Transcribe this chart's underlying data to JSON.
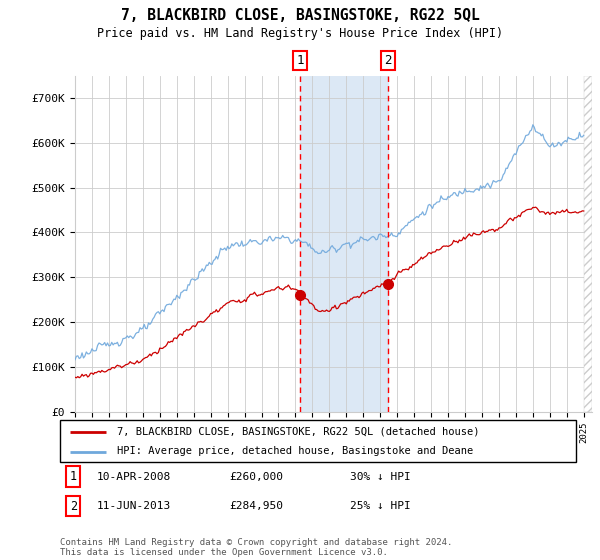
{
  "title": "7, BLACKBIRD CLOSE, BASINGSTOKE, RG22 5QL",
  "subtitle": "Price paid vs. HM Land Registry's House Price Index (HPI)",
  "ylim": [
    0,
    750000
  ],
  "yticks": [
    0,
    100000,
    200000,
    300000,
    400000,
    500000,
    600000,
    700000
  ],
  "ytick_labels": [
    "£0",
    "£100K",
    "£200K",
    "£300K",
    "£400K",
    "£500K",
    "£600K",
    "£700K"
  ],
  "hpi_color": "#6fa8dc",
  "price_color": "#cc0000",
  "marker1_x": 2008.27,
  "marker2_x": 2013.44,
  "marker1_price": 260000,
  "marker2_price": 284950,
  "shade_color": "#dce8f5",
  "grid_color": "#cccccc",
  "footer_text": "Contains HM Land Registry data © Crown copyright and database right 2024.\nThis data is licensed under the Open Government Licence v3.0.",
  "legend1_label": "7, BLACKBIRD CLOSE, BASINGSTOKE, RG22 5QL (detached house)",
  "legend2_label": "HPI: Average price, detached house, Basingstoke and Deane",
  "sale1_label": "10-APR-2008",
  "sale1_price": "£260,000",
  "sale1_hpi": "30% ↓ HPI",
  "sale2_label": "11-JUN-2013",
  "sale2_price": "£284,950",
  "sale2_hpi": "25% ↓ HPI"
}
